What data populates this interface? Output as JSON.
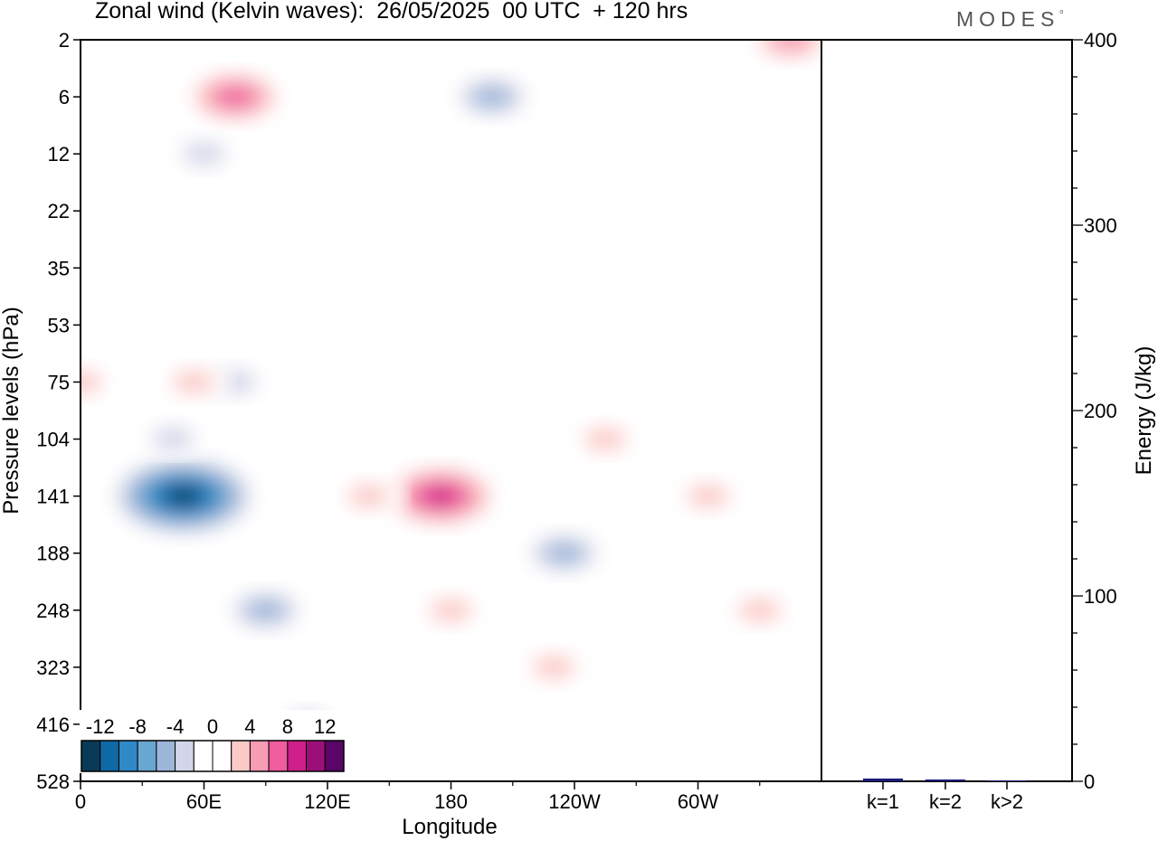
{
  "header": {
    "title": "Zonal wind (Kelvin waves):  26/05/2025  00 UTC  + 120 hrs",
    "brand": "MODES"
  },
  "colors": {
    "palette": [
      "#093a58",
      "#0e69a4",
      "#2f89c7",
      "#6aa6d2",
      "#9bb6d9",
      "#d3d5e8",
      "#ffffff",
      "#ffffff",
      "#fbc9c6",
      "#f89bb5",
      "#ef5d9e",
      "#cf1f8a",
      "#9c0f79",
      "#5a0568"
    ]
  },
  "colorbar": {
    "labels": [
      "-12",
      "-8",
      "-4",
      "0",
      "4",
      "8",
      "12"
    ]
  },
  "chart_data": [
    {
      "type": "heatmap",
      "title": "Zonal wind (Kelvin waves):  26/05/2025  00 UTC  + 120 hrs",
      "xlabel": "Longitude",
      "ylabel": "Pressure levels (hPa)",
      "x_ticks": [
        "0",
        "60E",
        "120E",
        "180",
        "120W",
        "60W"
      ],
      "y_ticks": [
        "2",
        "6",
        "12",
        "22",
        "35",
        "53",
        "75",
        "104",
        "141",
        "188",
        "248",
        "323",
        "416",
        "528"
      ],
      "levels": [
        -12,
        -10,
        -8,
        -6,
        -4,
        -2,
        0,
        2,
        4,
        6,
        8,
        10,
        12
      ],
      "features": [
        {
          "lon": 50,
          "level": "141",
          "value": -13
        },
        {
          "lon": 45,
          "level": "104",
          "value": -4
        },
        {
          "lon": 75,
          "level": "75",
          "value": -4
        },
        {
          "lon": 90,
          "level": "248",
          "value": -6
        },
        {
          "lon": 110,
          "level": "416",
          "value": -3
        },
        {
          "lon": 235,
          "level": "188",
          "value": -6
        },
        {
          "lon": 175,
          "level": "141",
          "value": 9
        },
        {
          "lon": 140,
          "level": "141",
          "value": 4
        },
        {
          "lon": 180,
          "level": "248",
          "value": 3
        },
        {
          "lon": 255,
          "level": "104",
          "value": 4
        },
        {
          "lon": 305,
          "level": "141",
          "value": 4
        },
        {
          "lon": 55,
          "level": "75",
          "value": 4
        },
        {
          "lon": 0,
          "level": "75",
          "value": 4
        },
        {
          "lon": 75,
          "level": "6",
          "value": 8
        },
        {
          "lon": 345,
          "level": "2",
          "value": 6
        },
        {
          "lon": 200,
          "level": "6",
          "value": -6
        },
        {
          "lon": 60,
          "level": "12",
          "value": -4
        },
        {
          "lon": 230,
          "level": "323",
          "value": 3
        },
        {
          "lon": 330,
          "level": "248",
          "value": 3
        }
      ]
    },
    {
      "type": "bar",
      "categories": [
        "k=1",
        "k=2",
        "k>2"
      ],
      "values": [
        1.5,
        1.0,
        0.5
      ],
      "ylabel": "Energy (J/kg)",
      "ylim": [
        0,
        400
      ],
      "y_ticks": [
        "0",
        "100",
        "200",
        "300",
        "400"
      ]
    }
  ]
}
